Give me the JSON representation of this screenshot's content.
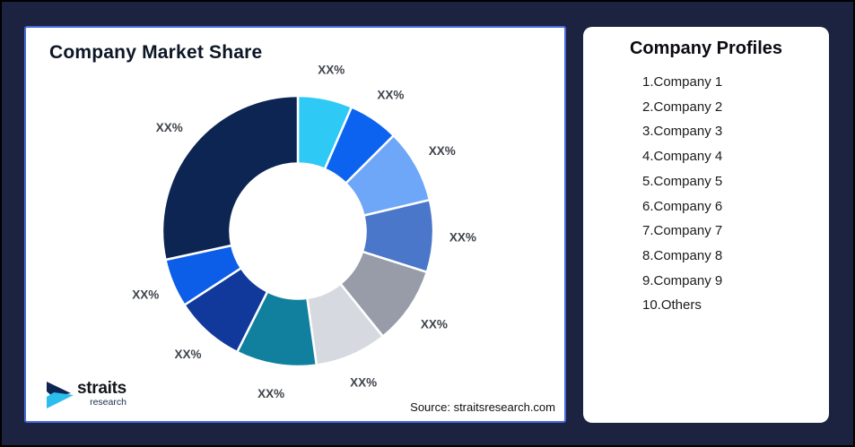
{
  "page": {
    "background": "#1B2340",
    "frame_border": "#000000"
  },
  "chart_card": {
    "title": "Company Market Share",
    "source_note": "Source: straitsresearch.com",
    "border_color": "#4A6CD9",
    "logo": {
      "icon": "straits-arrow-icon",
      "brand": "straits",
      "sub_brand": "research",
      "icon_top_color": "#0D2552",
      "icon_bottom_color": "#2BBDEE"
    }
  },
  "profiles_card": {
    "title": "Company Profiles",
    "items": [
      "1.Company 1",
      "2.Company 2",
      "3.Company 3",
      "4.Company 4",
      "5.Company 5",
      "6.Company 6",
      "7.Company 7",
      "8.Company 8",
      "9.Company 9",
      "10.Others"
    ]
  },
  "chart_data": {
    "type": "pie",
    "subtype": "donut",
    "title": "Company Market Share",
    "start_angle_deg": 0,
    "direction": "clockwise",
    "inner_radius_ratio": 0.5,
    "legend_position": "none",
    "label_color": "#3F444C",
    "separator_color": "#FFFFFF",
    "segments": [
      {
        "name": "Company 1",
        "label": "XX%",
        "value": 6.5,
        "color": "#2EC9F4"
      },
      {
        "name": "Company 2",
        "label": "XX%",
        "value": 6.0,
        "color": "#0B63F0"
      },
      {
        "name": "Company 3",
        "label": "XX%",
        "value": 8.8,
        "color": "#6EA6F8"
      },
      {
        "name": "Company 4",
        "label": "XX%",
        "value": 8.6,
        "color": "#4A77C9"
      },
      {
        "name": "Company 5",
        "label": "XX%",
        "value": 9.3,
        "color": "#979CA8"
      },
      {
        "name": "Company 6",
        "label": "XX%",
        "value": 8.6,
        "color": "#D6D9DF"
      },
      {
        "name": "Company 7",
        "label": "XX%",
        "value": 9.6,
        "color": "#10809E"
      },
      {
        "name": "Company 8",
        "label": "XX%",
        "value": 8.4,
        "color": "#10399B"
      },
      {
        "name": "Company 9",
        "label": "XX%",
        "value": 5.8,
        "color": "#0C5DE8"
      },
      {
        "name": "Others",
        "label": "XX%",
        "value": 28.4,
        "color": "#0D2552"
      }
    ]
  }
}
